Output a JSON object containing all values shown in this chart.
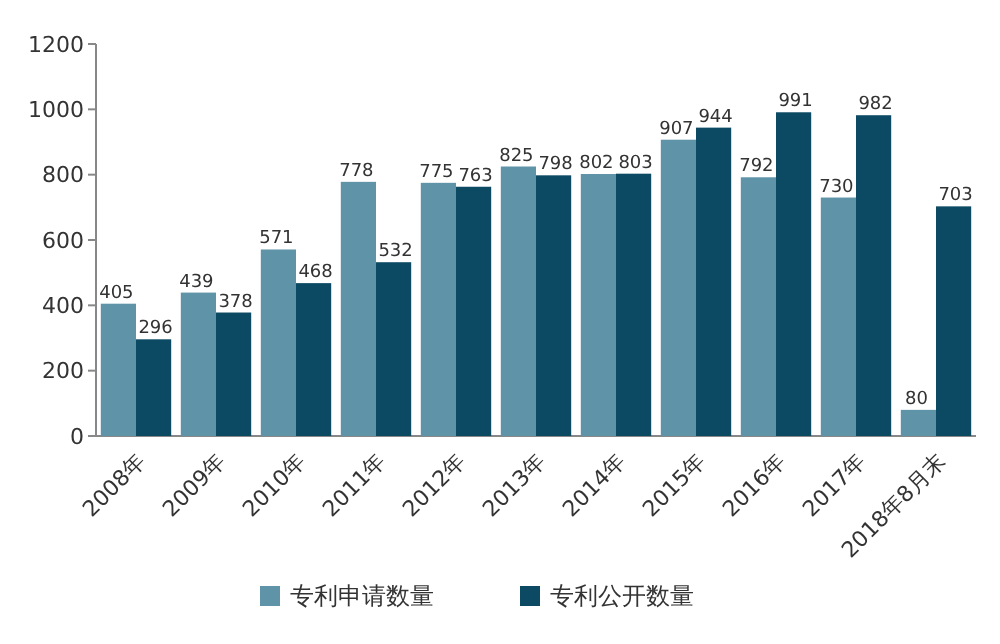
{
  "chart_data": {
    "type": "bar",
    "categories": [
      "2008年",
      "2009年",
      "2010年",
      "2011年",
      "2012年",
      "2013年",
      "2014年",
      "2015年",
      "2016年",
      "2017年",
      "2018年8月末"
    ],
    "series": [
      {
        "name": "专利申请数量",
        "color": "#5f93a8",
        "values": [
          405,
          439,
          571,
          778,
          775,
          825,
          802,
          907,
          792,
          730,
          80
        ]
      },
      {
        "name": "专利公开数量",
        "color": "#0c4a63",
        "values": [
          296,
          378,
          468,
          532,
          763,
          798,
          803,
          944,
          991,
          982,
          703
        ]
      }
    ],
    "ylim": [
      0,
      1200
    ],
    "yticks": [
      0,
      200,
      400,
      600,
      800,
      1000,
      1200
    ],
    "data_labels": true,
    "legend": "bottom"
  }
}
